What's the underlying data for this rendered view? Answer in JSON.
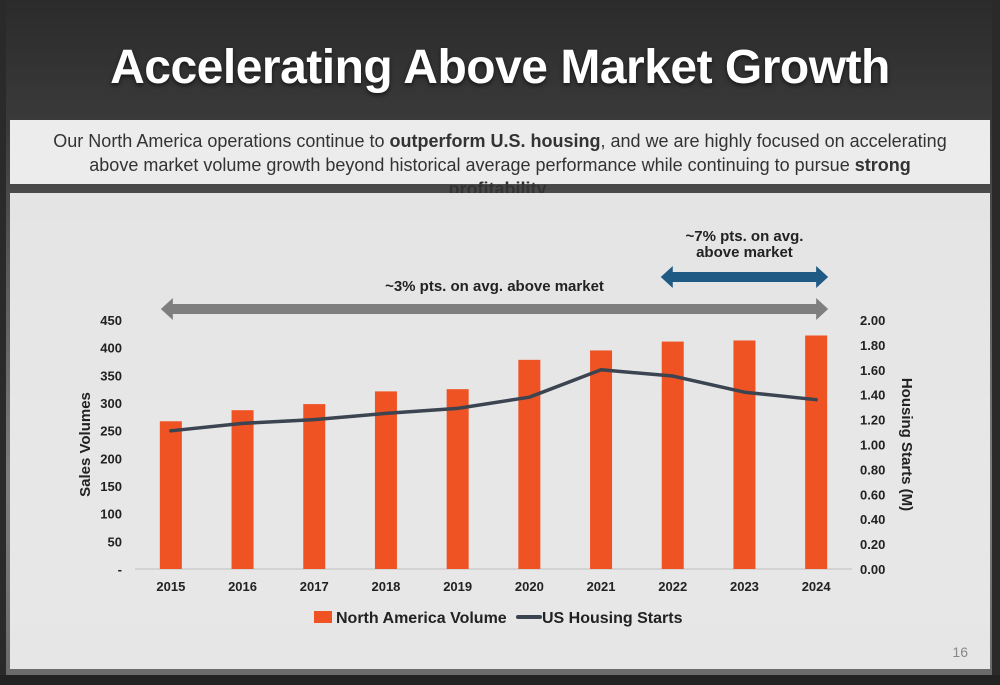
{
  "slide": {
    "title": "Accelerating Above Market Growth",
    "subtitle": {
      "part1": "Our North America operations continue to ",
      "bold1": "outperform U.S. housing",
      "part2": ", and we are highly focused on accelerating above market volume growth beyond historical average performance while continuing to pursue ",
      "bold2": "strong profitability",
      "part3": "."
    },
    "page_number": "16"
  },
  "chart_data": {
    "type": "bar",
    "categories": [
      "2015",
      "2016",
      "2017",
      "2018",
      "2019",
      "2020",
      "2021",
      "2022",
      "2023",
      "2024"
    ],
    "series": [
      {
        "name": "North America Volume",
        "type": "bar",
        "axis": "left",
        "color": "#f05323",
        "values": [
          267,
          287,
          298,
          321,
          325,
          378,
          395,
          411,
          413,
          422
        ]
      },
      {
        "name": "US Housing Starts",
        "type": "line",
        "axis": "right",
        "color": "#3b4450",
        "values": [
          1.11,
          1.17,
          1.2,
          1.25,
          1.29,
          1.38,
          1.6,
          1.55,
          1.42,
          1.36
        ]
      }
    ],
    "ylabel": "Sales Volumes",
    "ylim": [
      0,
      450
    ],
    "y_ticks": [
      "-",
      "50",
      "100",
      "150",
      "200",
      "250",
      "300",
      "350",
      "400",
      "450"
    ],
    "y2label": "Housing Starts (M)",
    "y2lim": [
      0,
      2.0
    ],
    "y2_ticks": [
      "0.00",
      "0.20",
      "0.40",
      "0.60",
      "0.80",
      "1.00",
      "1.20",
      "1.40",
      "1.60",
      "1.80",
      "2.00"
    ],
    "legend_position": "bottom",
    "grid": false,
    "annotations": [
      {
        "text": "~3% pts. on avg. above market",
        "from": "2015",
        "to": "2024",
        "color": "#7f7f7f"
      },
      {
        "text_line1": "~7% pts. on avg.",
        "text_line2": "above market",
        "from": "2022",
        "to": "2024",
        "color": "#1f5a84"
      }
    ]
  }
}
